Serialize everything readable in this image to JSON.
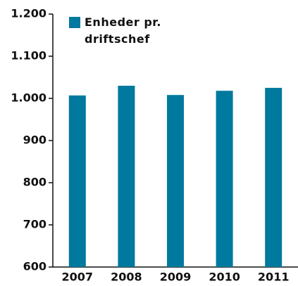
{
  "chart_data": {
    "type": "bar",
    "categories": [
      "2007",
      "2008",
      "2009",
      "2010",
      "2011"
    ],
    "series": [
      {
        "name": "Enheder pr. driftschef",
        "color": "#00799f",
        "values": [
          1007,
          1030,
          1008,
          1018,
          1025
        ]
      }
    ],
    "ylim": [
      600,
      1200
    ],
    "yticks": [
      600,
      700,
      800,
      900,
      {
        "value": 1000,
        "label": "1.000"
      },
      {
        "value": 1100,
        "label": "1.100"
      },
      {
        "value": 1200,
        "label": "1.200"
      }
    ],
    "legend": "upper left"
  }
}
